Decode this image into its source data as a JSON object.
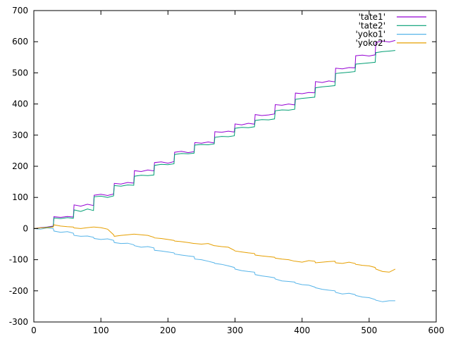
{
  "chart_data": {
    "type": "line",
    "title": "",
    "xlabel": "",
    "ylabel": "",
    "xlim": [
      0,
      600
    ],
    "ylim": [
      -300,
      700
    ],
    "xticks": [
      "0",
      "100",
      "200",
      "300",
      "400",
      "500",
      "600"
    ],
    "yticks": [
      "-300",
      "-200",
      "-100",
      "0",
      "100",
      "200",
      "300",
      "400",
      "500",
      "600",
      "700"
    ],
    "xtick_values": [
      0,
      100,
      200,
      300,
      400,
      500,
      600
    ],
    "ytick_values": [
      -300,
      -200,
      -100,
      0,
      100,
      200,
      300,
      400,
      500,
      600,
      700
    ],
    "grid": false,
    "legend_position": "top-right",
    "x": [
      0,
      10,
      20,
      29,
      30,
      40,
      50,
      59,
      60,
      70,
      80,
      89,
      90,
      100,
      110,
      119,
      120,
      130,
      140,
      149,
      150,
      160,
      170,
      179,
      180,
      190,
      200,
      209,
      210,
      220,
      230,
      239,
      240,
      250,
      260,
      269,
      270,
      280,
      290,
      299,
      300,
      310,
      320,
      329,
      330,
      340,
      350,
      359,
      360,
      370,
      380,
      389,
      390,
      400,
      410,
      419,
      420,
      430,
      440,
      449,
      450,
      460,
      470,
      479,
      480,
      490,
      500,
      509,
      510,
      520,
      530,
      539
    ],
    "series": [
      {
        "name": "'tate1'",
        "color": "#9400d3",
        "values": [
          0,
          3,
          5,
          8,
          38,
          36,
          39,
          37,
          76,
          72,
          78,
          74,
          107,
          110,
          106,
          111,
          145,
          143,
          148,
          146,
          186,
          183,
          188,
          185,
          212,
          214,
          210,
          215,
          245,
          248,
          244,
          247,
          276,
          274,
          278,
          275,
          311,
          309,
          313,
          310,
          336,
          333,
          338,
          335,
          366,
          363,
          365,
          368,
          398,
          396,
          400,
          397,
          435,
          433,
          437,
          436,
          472,
          469,
          474,
          471,
          515,
          513,
          517,
          516,
          555,
          557,
          554,
          558,
          598,
          602,
          599,
          604
        ]
      },
      {
        "name": "'tate2'",
        "color": "#009e73",
        "values": [
          0,
          2,
          4,
          6,
          34,
          32,
          35,
          33,
          60,
          55,
          63,
          58,
          102,
          104,
          100,
          105,
          138,
          136,
          140,
          139,
          168,
          171,
          170,
          172,
          203,
          206,
          205,
          208,
          238,
          241,
          240,
          242,
          268,
          270,
          269,
          272,
          293,
          296,
          295,
          298,
          322,
          325,
          324,
          327,
          347,
          350,
          349,
          352,
          378,
          381,
          380,
          383,
          415,
          418,
          420,
          422,
          452,
          455,
          457,
          459,
          498,
          500,
          502,
          504,
          528,
          530,
          532,
          534,
          565,
          568,
          570,
          572
        ]
      },
      {
        "name": "'yoko1'",
        "color": "#56b4e9",
        "values": [
          0,
          -2,
          2,
          0,
          -8,
          -12,
          -10,
          -15,
          -22,
          -25,
          -24,
          -28,
          -32,
          -35,
          -33,
          -38,
          -45,
          -48,
          -47,
          -52,
          -55,
          -60,
          -58,
          -62,
          -70,
          -72,
          -75,
          -78,
          -82,
          -85,
          -88,
          -90,
          -98,
          -100,
          -105,
          -110,
          -112,
          -115,
          -120,
          -125,
          -130,
          -135,
          -138,
          -140,
          -148,
          -152,
          -155,
          -158,
          -162,
          -168,
          -170,
          -172,
          -175,
          -180,
          -182,
          -188,
          -190,
          -195,
          -198,
          -200,
          -205,
          -210,
          -208,
          -212,
          -215,
          -220,
          -222,
          -228,
          -230,
          -235,
          -232,
          -232
        ]
      },
      {
        "name": "'yoko2'",
        "color": "#e69f00",
        "values": [
          0,
          2,
          3,
          5,
          12,
          8,
          6,
          5,
          2,
          0,
          3,
          5,
          5,
          3,
          -2,
          -20,
          -25,
          -22,
          -20,
          -18,
          -18,
          -20,
          -22,
          -28,
          -30,
          -32,
          -35,
          -38,
          -40,
          -42,
          -45,
          -48,
          -48,
          -50,
          -48,
          -55,
          -55,
          -58,
          -60,
          -70,
          -72,
          -75,
          -78,
          -80,
          -85,
          -88,
          -90,
          -92,
          -95,
          -98,
          -100,
          -105,
          -105,
          -108,
          -103,
          -105,
          -110,
          -108,
          -106,
          -105,
          -110,
          -112,
          -108,
          -112,
          -115,
          -118,
          -120,
          -125,
          -130,
          -138,
          -140,
          -130
        ]
      }
    ]
  }
}
